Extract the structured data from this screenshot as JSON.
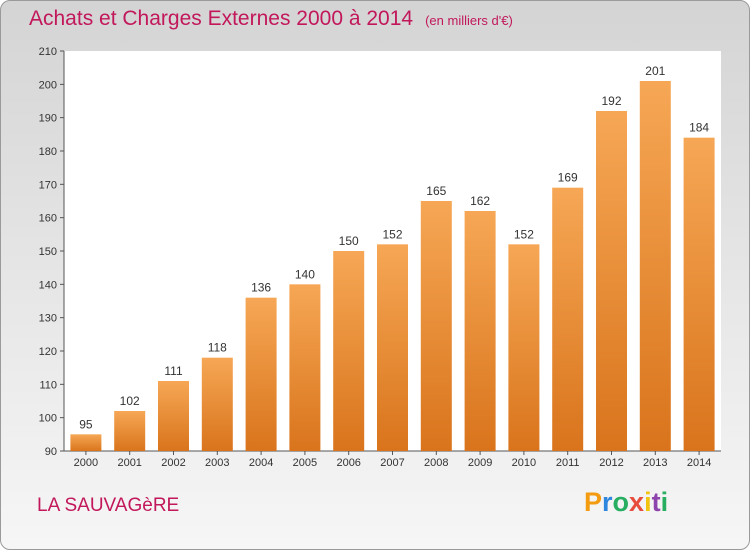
{
  "title": "Achats et Charges Externes 2000 à 2014",
  "subtitle": "(en milliers d'€)",
  "commune": "LA SAUVAGèRE",
  "logo": {
    "letters": [
      "P",
      "r",
      "o",
      "x",
      "i",
      "t",
      "i"
    ],
    "colors": [
      "#f39c12",
      "#2e86de",
      "#27ae60",
      "#e74c3c",
      "#f1c40f",
      "#8e44ad",
      "#27ae60"
    ]
  },
  "colors": {
    "bar_top": "#f6a755",
    "bar_bottom": "#d9741c",
    "title": "#c2185b"
  },
  "chart_data": {
    "type": "bar",
    "categories": [
      "2000",
      "2001",
      "2002",
      "2003",
      "2004",
      "2005",
      "2006",
      "2007",
      "2008",
      "2009",
      "2010",
      "2011",
      "2012",
      "2013",
      "2014"
    ],
    "values": [
      95,
      102,
      111,
      118,
      136,
      140,
      150,
      152,
      165,
      162,
      152,
      169,
      192,
      201,
      184
    ],
    "ylim": [
      90,
      210
    ],
    "yticks": [
      90,
      100,
      110,
      120,
      130,
      140,
      150,
      160,
      170,
      180,
      190,
      200,
      210
    ],
    "grid": false,
    "data_labels": true
  }
}
